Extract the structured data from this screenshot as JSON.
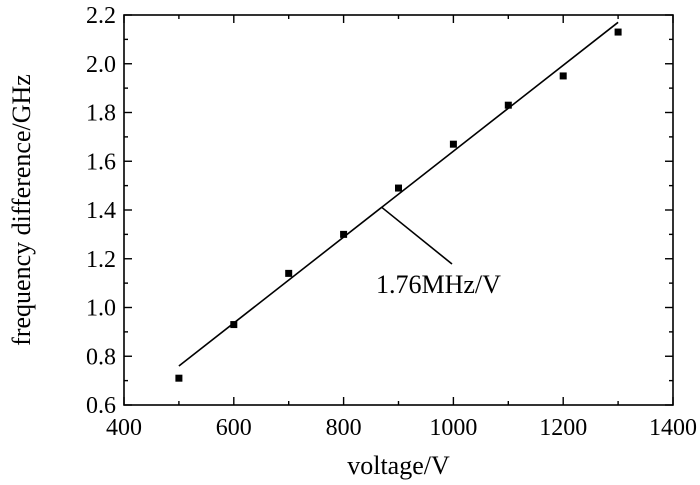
{
  "chart_data": {
    "type": "scatter",
    "xlabel": "voltage/V",
    "ylabel": "frequency difference/GHz",
    "xlim": [
      400,
      1400
    ],
    "ylim": [
      0.6,
      2.2
    ],
    "x_ticks": [
      400,
      600,
      800,
      1000,
      1200,
      1400
    ],
    "y_ticks": [
      0.6,
      0.8,
      1.0,
      1.2,
      1.4,
      1.6,
      1.8,
      2.0,
      2.2
    ],
    "x_tick_labels": [
      "400",
      "600",
      "800",
      "1000",
      "1200",
      "1400"
    ],
    "y_tick_labels": [
      "0.6",
      "0.8",
      "1.0",
      "1.2",
      "1.4",
      "1.6",
      "1.8",
      "2.0",
      "2.2"
    ],
    "grid": false,
    "series": [
      {
        "kind": "points",
        "marker": "square",
        "x": [
          500,
          600,
          700,
          800,
          900,
          1000,
          1100,
          1200,
          1300
        ],
        "y": [
          0.71,
          0.93,
          1.14,
          1.3,
          1.49,
          1.67,
          1.83,
          1.95,
          2.13
        ]
      },
      {
        "kind": "fit-line",
        "x": [
          500,
          1300
        ],
        "y": [
          0.76,
          2.17
        ]
      }
    ],
    "annotation": {
      "text": "1.76MHz/V",
      "points_to": [
        870,
        1.41
      ]
    }
  }
}
